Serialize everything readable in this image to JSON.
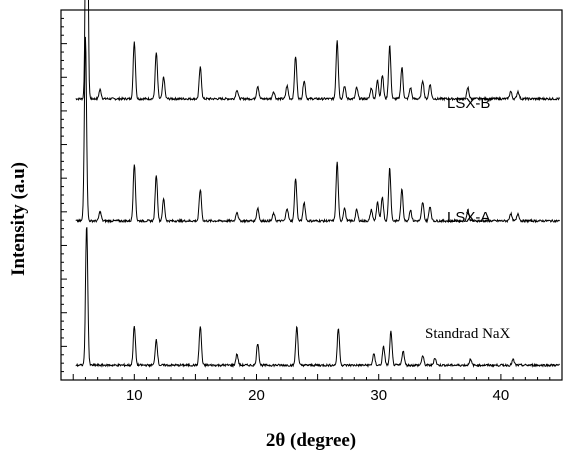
{
  "chart_data": {
    "type": "line",
    "xlabel": "2θ (degree)",
    "ylabel": "Intensity (a.u)",
    "xlim": [
      4,
      45
    ],
    "x_ticks": [
      10,
      20,
      30,
      40
    ],
    "y_ticks_shown": false,
    "grid": false,
    "legend": "none",
    "series": [
      {
        "name": "LSX-B",
        "baseline": 0.76,
        "peaks": [
          [
            6.1,
            0.98
          ],
          [
            7.2,
            0.025
          ],
          [
            10.0,
            0.155
          ],
          [
            11.8,
            0.125
          ],
          [
            12.4,
            0.06
          ],
          [
            15.4,
            0.085
          ],
          [
            18.4,
            0.025
          ],
          [
            20.1,
            0.035
          ],
          [
            21.4,
            0.02
          ],
          [
            22.5,
            0.035
          ],
          [
            23.2,
            0.115
          ],
          [
            23.9,
            0.05
          ],
          [
            26.6,
            0.16
          ],
          [
            27.2,
            0.035
          ],
          [
            28.2,
            0.03
          ],
          [
            29.4,
            0.03
          ],
          [
            29.9,
            0.05
          ],
          [
            30.3,
            0.065
          ],
          [
            30.9,
            0.145
          ],
          [
            31.9,
            0.085
          ],
          [
            32.6,
            0.03
          ],
          [
            33.6,
            0.05
          ],
          [
            34.2,
            0.04
          ],
          [
            37.3,
            0.03
          ],
          [
            40.8,
            0.02
          ],
          [
            41.4,
            0.02
          ]
        ]
      },
      {
        "name": "LSX-A",
        "baseline": 0.43,
        "peaks": [
          [
            6.0,
            0.5
          ],
          [
            7.2,
            0.025
          ],
          [
            10.0,
            0.155
          ],
          [
            11.8,
            0.125
          ],
          [
            12.4,
            0.06
          ],
          [
            15.4,
            0.085
          ],
          [
            18.4,
            0.025
          ],
          [
            20.1,
            0.035
          ],
          [
            21.4,
            0.02
          ],
          [
            22.5,
            0.035
          ],
          [
            23.2,
            0.115
          ],
          [
            23.9,
            0.05
          ],
          [
            26.6,
            0.16
          ],
          [
            27.2,
            0.035
          ],
          [
            28.2,
            0.03
          ],
          [
            29.4,
            0.03
          ],
          [
            29.9,
            0.05
          ],
          [
            30.3,
            0.065
          ],
          [
            30.9,
            0.145
          ],
          [
            31.9,
            0.085
          ],
          [
            32.6,
            0.03
          ],
          [
            33.6,
            0.05
          ],
          [
            34.2,
            0.04
          ],
          [
            37.3,
            0.03
          ],
          [
            40.8,
            0.02
          ],
          [
            41.4,
            0.02
          ]
        ]
      },
      {
        "name": "Standrad NaX",
        "baseline": 0.04,
        "peaks": [
          [
            6.1,
            0.38
          ],
          [
            10.0,
            0.105
          ],
          [
            11.8,
            0.07
          ],
          [
            15.4,
            0.105
          ],
          [
            18.4,
            0.03
          ],
          [
            20.1,
            0.06
          ],
          [
            23.3,
            0.105
          ],
          [
            26.7,
            0.1
          ],
          [
            29.6,
            0.03
          ],
          [
            30.4,
            0.05
          ],
          [
            31.0,
            0.09
          ],
          [
            32.0,
            0.04
          ],
          [
            33.6,
            0.025
          ],
          [
            34.6,
            0.02
          ],
          [
            37.5,
            0.015
          ],
          [
            41.0,
            0.015
          ]
        ]
      }
    ]
  }
}
